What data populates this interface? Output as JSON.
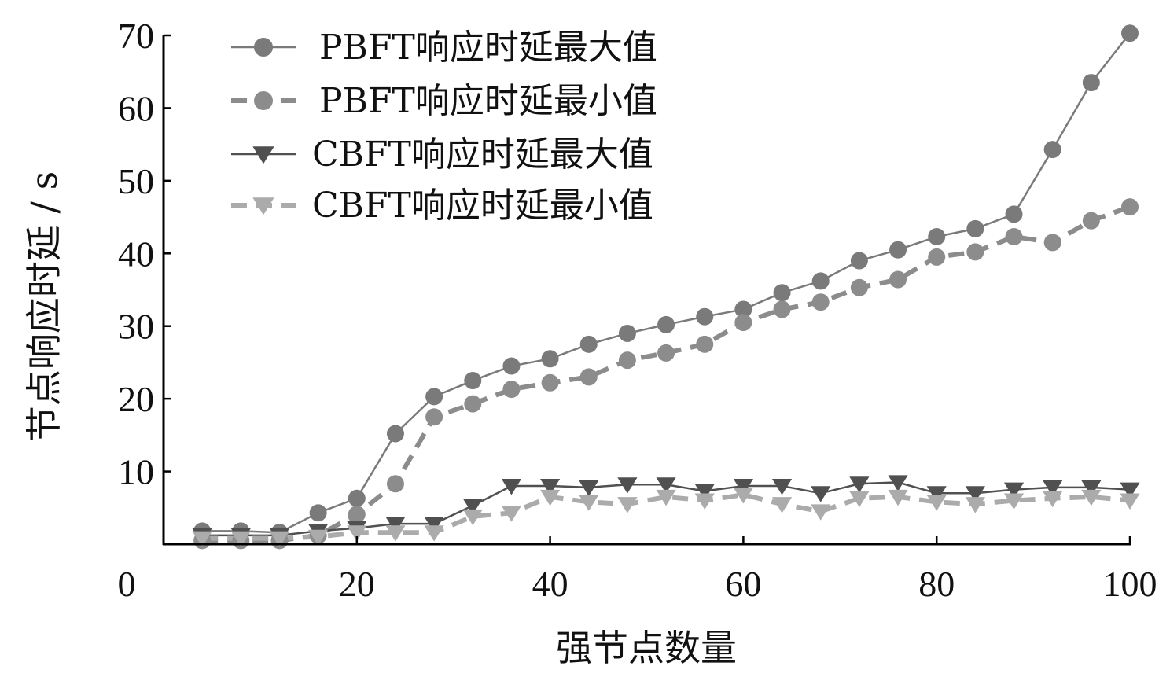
{
  "chart_data": {
    "type": "line",
    "title": "",
    "xlabel": "强节点数量",
    "ylabel": "节点响应时延 / s",
    "xlim": [
      0,
      100
    ],
    "ylim": [
      0,
      70
    ],
    "xticks": [
      20,
      40,
      60,
      80,
      100
    ],
    "yticks": [
      10,
      20,
      30,
      40,
      50,
      60,
      70
    ],
    "origin_label": "0",
    "grid": false,
    "legend_position": "top-left",
    "x": [
      4,
      8,
      12,
      16,
      20,
      24,
      28,
      32,
      36,
      40,
      44,
      48,
      52,
      56,
      60,
      64,
      68,
      72,
      76,
      80,
      84,
      88,
      92,
      96,
      100
    ],
    "series": [
      {
        "name": "PBFT响应时延最大值",
        "color": "#7a7a7a",
        "line_style": "solid",
        "marker": "circle",
        "values": [
          1.8,
          1.8,
          1.6,
          4.3,
          6.3,
          15.2,
          20.3,
          22.5,
          24.5,
          25.5,
          27.5,
          29.0,
          30.2,
          31.3,
          32.3,
          34.6,
          36.2,
          39.0,
          40.5,
          42.3,
          43.4,
          45.4,
          54.3,
          63.5,
          70.3
        ]
      },
      {
        "name": "PBFT响应时延最小值",
        "color": "#8c8c8c",
        "line_style": "dashed",
        "marker": "circle",
        "values": [
          0.5,
          0.5,
          0.5,
          1.2,
          4.1,
          8.3,
          17.5,
          19.3,
          21.3,
          22.2,
          23.0,
          25.3,
          26.3,
          27.5,
          30.5,
          32.3,
          33.3,
          35.3,
          36.4,
          39.5,
          40.2,
          42.3,
          41.5,
          44.5,
          46.4
        ]
      },
      {
        "name": "CBFT响应时延最大值",
        "color": "#505050",
        "line_style": "solid",
        "marker": "triangle-down",
        "values": [
          1.2,
          1.2,
          1.2,
          1.8,
          2.2,
          2.8,
          2.8,
          5.3,
          8.0,
          8.0,
          7.8,
          8.2,
          8.2,
          7.3,
          8.0,
          8.0,
          7.0,
          8.3,
          8.5,
          7.0,
          7.0,
          7.5,
          7.8,
          7.8,
          7.5
        ]
      },
      {
        "name": "CBFT响应时延最小值",
        "color": "#ababab",
        "line_style": "dashed",
        "marker": "triangle-down",
        "values": [
          0.8,
          0.8,
          0.8,
          1.0,
          1.6,
          1.6,
          1.6,
          3.8,
          4.3,
          6.5,
          5.8,
          5.5,
          6.5,
          6.0,
          6.8,
          5.5,
          4.5,
          6.3,
          6.5,
          5.8,
          5.5,
          6.0,
          6.3,
          6.5,
          6.0
        ]
      }
    ]
  }
}
